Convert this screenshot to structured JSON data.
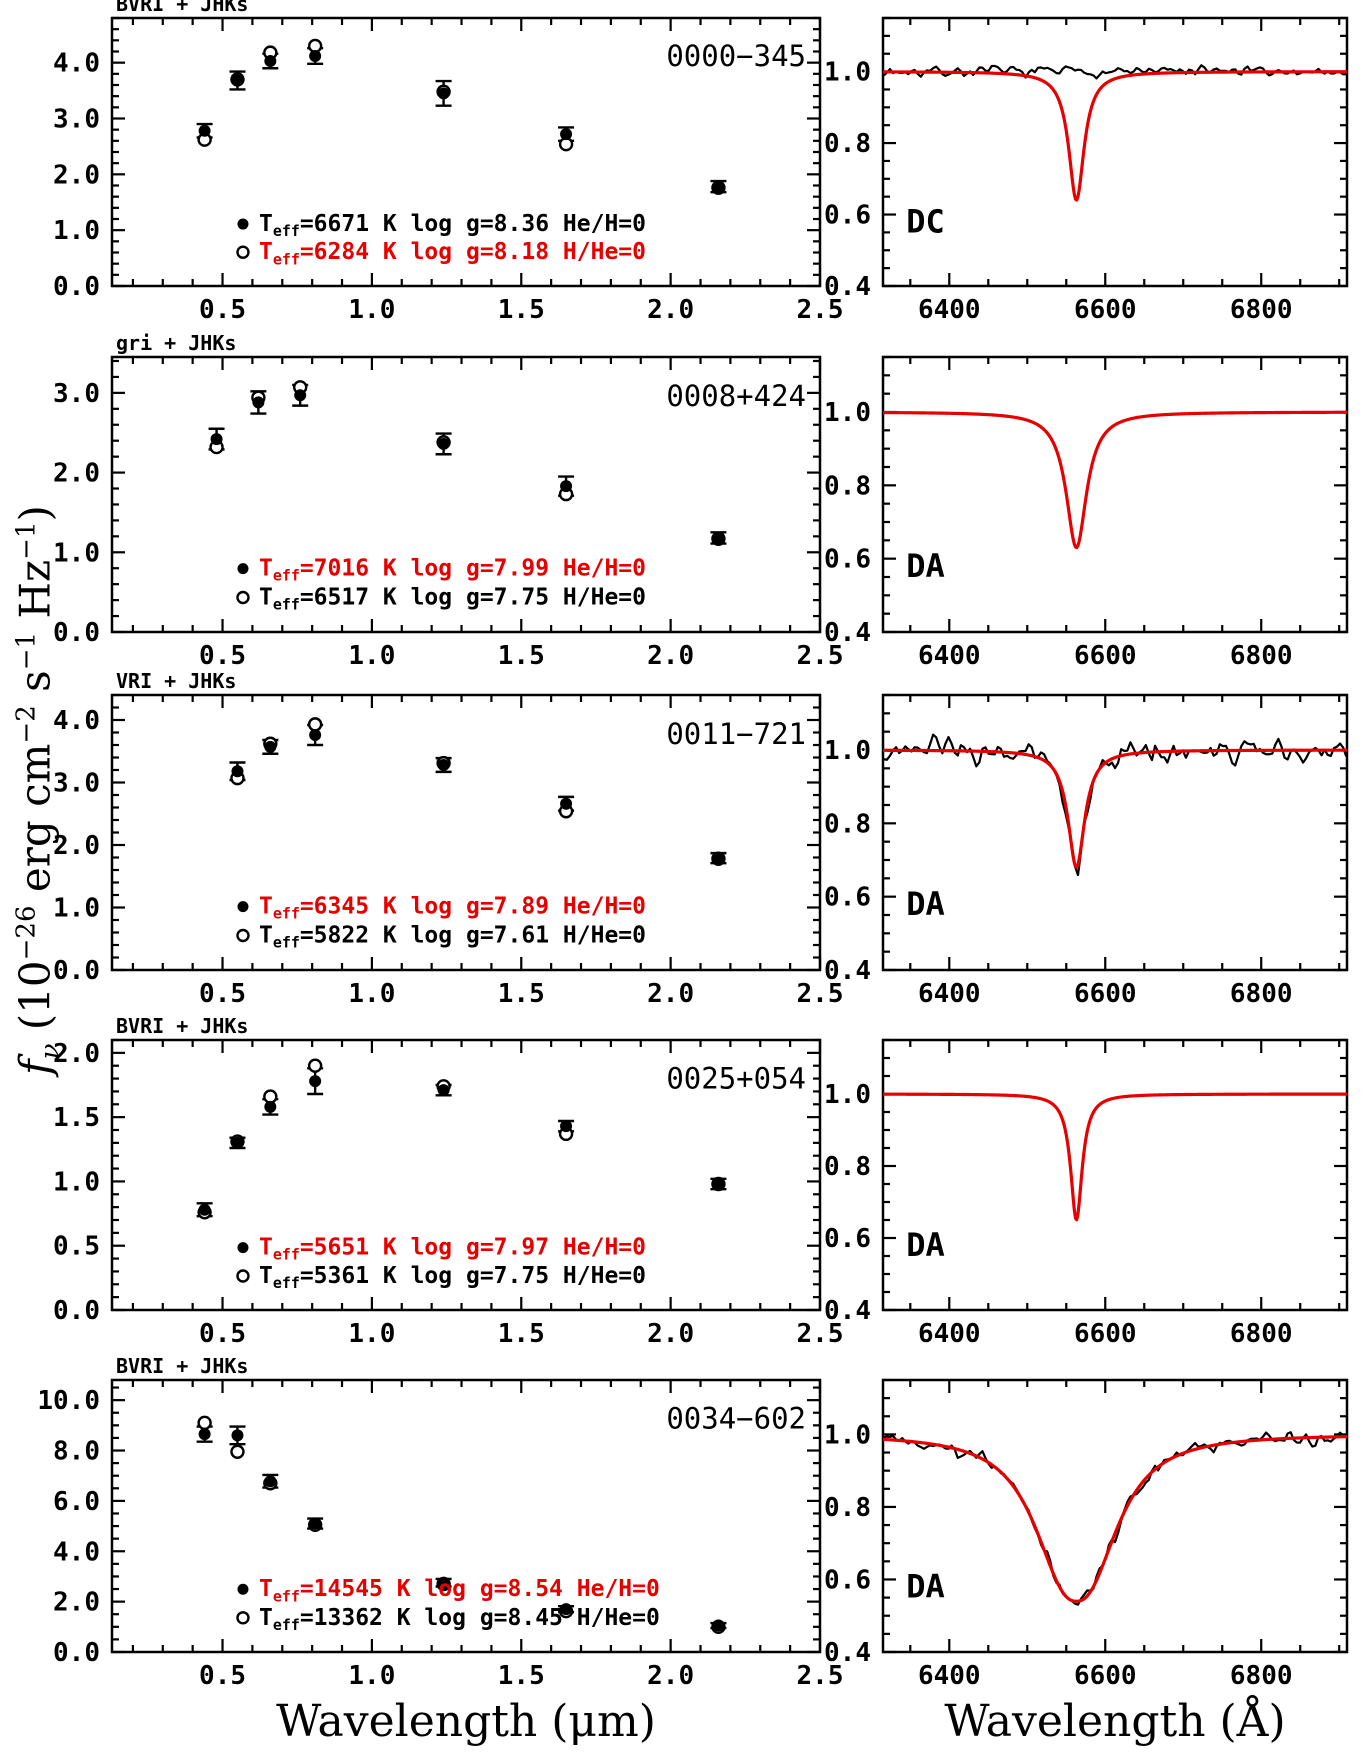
{
  "figure": {
    "background": "#ffffff",
    "red": "#e60000",
    "black": "#000000",
    "xlabel_left": "Wavelength (μm)",
    "xlabel_right": "Wavelength (Å)",
    "ylabel_segments": [
      {
        "t": "f",
        "italic": true
      },
      {
        "t": "ν",
        "sub": true,
        "italic": true
      },
      {
        "t": " (10"
      },
      {
        "t": "−26",
        "sup": true
      },
      {
        "t": " erg cm"
      },
      {
        "t": "−2",
        "sup": true
      },
      {
        "t": " s"
      },
      {
        "t": "−1",
        "sup": true
      },
      {
        "t": " Hz"
      },
      {
        "t": "−1",
        "sup": true
      },
      {
        "t": ")"
      }
    ]
  },
  "chart_data": [
    {
      "sed": {
        "type": "scatter",
        "band_label": "BVRI + JHKs",
        "title": "0000−345",
        "xlim": [
          0.13,
          2.5
        ],
        "ylim": [
          0,
          4.8
        ],
        "xticks": [
          0.5,
          1.0,
          1.5,
          2.0,
          2.5
        ],
        "xtick_labels": [
          "0.5",
          "1.0",
          "1.5",
          "2.0",
          "2.5"
        ],
        "yticks": [
          0,
          1,
          2,
          3,
          4
        ],
        "ytick_labels": [
          "0.0",
          "1.0",
          "2.0",
          "3.0",
          "4.0"
        ],
        "x_minor": 0.1,
        "y_minor": 0.2,
        "filled": {
          "x": [
            0.44,
            0.55,
            0.66,
            0.81,
            1.24,
            1.65,
            2.16
          ],
          "y": [
            2.78,
            3.68,
            4.03,
            4.12,
            3.45,
            2.72,
            1.78
          ],
          "yerr": [
            0.12,
            0.16,
            0.13,
            0.14,
            0.22,
            0.12,
            0.1
          ]
        },
        "open": {
          "x": [
            0.44,
            0.55,
            0.66,
            0.81,
            1.24,
            1.65,
            2.16
          ],
          "y": [
            2.62,
            3.7,
            4.18,
            4.3,
            3.48,
            2.54,
            1.76
          ]
        },
        "legend": [
          {
            "marker": "filled",
            "color": "#000000",
            "segments": [
              {
                "t": "T"
              },
              {
                "t": "eff",
                "sub": true
              },
              {
                "t": "=6671 K  log g=8.36  He/H=0"
              }
            ]
          },
          {
            "marker": "open",
            "color": "#e60000",
            "segments": [
              {
                "t": "T"
              },
              {
                "t": "eff",
                "sub": true
              },
              {
                "t": "=6284 K  log g=8.18  H/He=0"
              }
            ]
          }
        ]
      },
      "spectrum": {
        "type": "line",
        "label": "DC",
        "xlim": [
          6315,
          6910
        ],
        "ylim": [
          0.4,
          1.15
        ],
        "xticks": [
          6400,
          6600,
          6800
        ],
        "xtick_labels": [
          "6400",
          "6600",
          "6800"
        ],
        "yticks": [
          0.4,
          0.6,
          0.8,
          1.0
        ],
        "ytick_labels": [
          "0.4",
          "0.6",
          "0.8",
          "1.0"
        ],
        "x_minor": 50,
        "y_minor": 0.05,
        "model": {
          "center": 6563,
          "depth": 0.36,
          "width": 12,
          "power": 2
        },
        "observed": {
          "mode": "flat",
          "noise": 0.009,
          "seed": 7
        }
      }
    },
    {
      "sed": {
        "type": "scatter",
        "band_label": "gri + JHKs",
        "title": "0008+424",
        "xlim": [
          0.13,
          2.5
        ],
        "ylim": [
          0,
          3.45
        ],
        "xticks": [
          0.5,
          1.0,
          1.5,
          2.0,
          2.5
        ],
        "xtick_labels": [
          "0.5",
          "1.0",
          "1.5",
          "2.0",
          "2.5"
        ],
        "yticks": [
          0,
          1,
          2,
          3
        ],
        "ytick_labels": [
          "0.0",
          "1.0",
          "2.0",
          "3.0"
        ],
        "x_minor": 0.1,
        "y_minor": 0.2,
        "filled": {
          "x": [
            0.48,
            0.62,
            0.76,
            1.24,
            1.65,
            2.16
          ],
          "y": [
            2.42,
            2.88,
            2.97,
            2.36,
            1.83,
            1.18
          ],
          "yerr": [
            0.13,
            0.14,
            0.13,
            0.13,
            0.12,
            0.07
          ]
        },
        "open": {
          "x": [
            0.48,
            0.62,
            0.76,
            1.24,
            1.65,
            2.16
          ],
          "y": [
            2.32,
            2.94,
            3.07,
            2.38,
            1.73,
            1.17
          ]
        },
        "legend": [
          {
            "marker": "filled",
            "color": "#e60000",
            "segments": [
              {
                "t": "T"
              },
              {
                "t": "eff",
                "sub": true
              },
              {
                "t": "=7016 K  log g=7.99  He/H=0"
              }
            ]
          },
          {
            "marker": "open",
            "color": "#000000",
            "segments": [
              {
                "t": "T"
              },
              {
                "t": "eff",
                "sub": true
              },
              {
                "t": "=6517 K  log g=7.75  H/He=0"
              }
            ]
          }
        ]
      },
      "spectrum": {
        "type": "line",
        "label": "DA",
        "xlim": [
          6315,
          6910
        ],
        "ylim": [
          0.4,
          1.15
        ],
        "xticks": [
          6400,
          6600,
          6800
        ],
        "xtick_labels": [
          "6400",
          "6600",
          "6800"
        ],
        "yticks": [
          0.4,
          0.6,
          0.8,
          1.0
        ],
        "ytick_labels": [
          "0.4",
          "0.6",
          "0.8",
          "1.0"
        ],
        "x_minor": 50,
        "y_minor": 0.05,
        "model": {
          "center": 6563,
          "depth": 0.37,
          "width": 16,
          "power": 2
        },
        "observed": null
      }
    },
    {
      "sed": {
        "type": "scatter",
        "band_label": "VRI + JHKs",
        "title": "0011−721",
        "xlim": [
          0.13,
          2.5
        ],
        "ylim": [
          0,
          4.4
        ],
        "xticks": [
          0.5,
          1.0,
          1.5,
          2.0,
          2.5
        ],
        "xtick_labels": [
          "0.5",
          "1.0",
          "1.5",
          "2.0",
          "2.5"
        ],
        "yticks": [
          0,
          1,
          2,
          3,
          4
        ],
        "ytick_labels": [
          "0.0",
          "1.0",
          "2.0",
          "3.0",
          "4.0"
        ],
        "x_minor": 0.1,
        "y_minor": 0.2,
        "filled": {
          "x": [
            0.55,
            0.66,
            0.81,
            1.24,
            1.65,
            2.16
          ],
          "y": [
            3.18,
            3.57,
            3.76,
            3.28,
            2.66,
            1.79
          ],
          "yerr": [
            0.14,
            0.11,
            0.16,
            0.11,
            0.11,
            0.08
          ]
        },
        "open": {
          "x": [
            0.55,
            0.66,
            0.81,
            1.24,
            1.65,
            2.16
          ],
          "y": [
            3.07,
            3.62,
            3.93,
            3.31,
            2.54,
            1.78
          ]
        },
        "legend": [
          {
            "marker": "filled",
            "color": "#e60000",
            "segments": [
              {
                "t": "T"
              },
              {
                "t": "eff",
                "sub": true
              },
              {
                "t": "=6345 K  log g=7.89  He/H=0"
              }
            ]
          },
          {
            "marker": "open",
            "color": "#000000",
            "segments": [
              {
                "t": "T"
              },
              {
                "t": "eff",
                "sub": true
              },
              {
                "t": "=5822 K  log g=7.61  H/He=0"
              }
            ]
          }
        ]
      },
      "spectrum": {
        "type": "line",
        "label": "DA",
        "xlim": [
          6315,
          6910
        ],
        "ylim": [
          0.4,
          1.15
        ],
        "xticks": [
          6400,
          6600,
          6800
        ],
        "xtick_labels": [
          "6400",
          "6600",
          "6800"
        ],
        "yticks": [
          0.4,
          0.6,
          0.8,
          1.0
        ],
        "ytick_labels": [
          "0.4",
          "0.6",
          "0.8",
          "1.0"
        ],
        "x_minor": 50,
        "y_minor": 0.05,
        "model": {
          "center": 6563,
          "depth": 0.32,
          "width": 13,
          "power": 2
        },
        "observed": {
          "mode": "model",
          "noise": 0.022,
          "seed": 23
        }
      }
    },
    {
      "sed": {
        "type": "scatter",
        "band_label": "BVRI + JHKs",
        "title": "0025+054",
        "xlim": [
          0.13,
          2.5
        ],
        "ylim": [
          0,
          2.1
        ],
        "xticks": [
          0.5,
          1.0,
          1.5,
          2.0,
          2.5
        ],
        "xtick_labels": [
          "0.5",
          "1.0",
          "1.5",
          "2.0",
          "2.5"
        ],
        "yticks": [
          0,
          0.5,
          1.0,
          1.5,
          2.0
        ],
        "ytick_labels": [
          "0.0",
          "0.5",
          "1.0",
          "1.5",
          "2.0"
        ],
        "x_minor": 0.1,
        "y_minor": 0.1,
        "filled": {
          "x": [
            0.44,
            0.55,
            0.66,
            0.81,
            1.24,
            1.65,
            2.16
          ],
          "y": [
            0.78,
            1.3,
            1.58,
            1.78,
            1.71,
            1.43,
            0.98
          ],
          "yerr": [
            0.05,
            0.04,
            0.06,
            0.1,
            0.04,
            0.04,
            0.04
          ]
        },
        "open": {
          "x": [
            0.44,
            0.55,
            0.66,
            0.81,
            1.24,
            1.65,
            2.16
          ],
          "y": [
            0.76,
            1.31,
            1.66,
            1.9,
            1.74,
            1.37,
            0.98
          ]
        },
        "legend": [
          {
            "marker": "filled",
            "color": "#e60000",
            "segments": [
              {
                "t": "T"
              },
              {
                "t": "eff",
                "sub": true
              },
              {
                "t": "=5651 K  log g=7.97  He/H=0"
              }
            ]
          },
          {
            "marker": "open",
            "color": "#000000",
            "segments": [
              {
                "t": "T"
              },
              {
                "t": "eff",
                "sub": true
              },
              {
                "t": "=5361 K  log g=7.75  H/He=0"
              }
            ]
          }
        ]
      },
      "spectrum": {
        "type": "line",
        "label": "DA",
        "xlim": [
          6315,
          6910
        ],
        "ylim": [
          0.4,
          1.15
        ],
        "xticks": [
          6400,
          6600,
          6800
        ],
        "xtick_labels": [
          "6400",
          "6600",
          "6800"
        ],
        "yticks": [
          0.4,
          0.6,
          0.8,
          1.0
        ],
        "ytick_labels": [
          "0.4",
          "0.6",
          "0.8",
          "1.0"
        ],
        "x_minor": 50,
        "y_minor": 0.05,
        "model": {
          "center": 6563,
          "depth": 0.35,
          "width": 9,
          "power": 2
        },
        "observed": null
      }
    },
    {
      "sed": {
        "type": "scatter",
        "band_label": "BVRI + JHKs",
        "title": "0034−602",
        "xlim": [
          0.13,
          2.5
        ],
        "ylim": [
          0,
          10.8
        ],
        "xticks": [
          0.5,
          1.0,
          1.5,
          2.0,
          2.5
        ],
        "xtick_labels": [
          "0.5",
          "1.0",
          "1.5",
          "2.0",
          "2.5"
        ],
        "yticks": [
          0,
          2,
          4,
          6,
          8,
          10
        ],
        "ytick_labels": [
          "0.0",
          "2.0",
          "4.0",
          "6.0",
          "8.0",
          "10.0"
        ],
        "x_minor": 0.1,
        "y_minor": 0.5,
        "filled": {
          "x": [
            0.44,
            0.55,
            0.66,
            0.81,
            1.24,
            1.65,
            2.16
          ],
          "y": [
            8.65,
            8.6,
            6.78,
            5.1,
            2.75,
            1.7,
            1.05
          ],
          "yerr": [
            0.3,
            0.35,
            0.25,
            0.2,
            0.15,
            0.12,
            0.1
          ]
        },
        "open": {
          "x": [
            0.44,
            0.55,
            0.66,
            0.81,
            1.24,
            1.65,
            2.16
          ],
          "y": [
            9.1,
            7.95,
            6.7,
            5.05,
            2.7,
            1.62,
            1.0
          ]
        },
        "legend": [
          {
            "marker": "filled",
            "color": "#e60000",
            "segments": [
              {
                "t": "T"
              },
              {
                "t": "eff",
                "sub": true
              },
              {
                "t": "=14545 K  log g=8.54  He/H=0"
              }
            ]
          },
          {
            "marker": "open",
            "color": "#000000",
            "segments": [
              {
                "t": "T"
              },
              {
                "t": "eff",
                "sub": true
              },
              {
                "t": "=13362 K  log g=8.45  H/He=0"
              }
            ]
          }
        ]
      },
      "spectrum": {
        "type": "line",
        "label": "DA",
        "xlim": [
          6315,
          6910
        ],
        "ylim": [
          0.4,
          1.15
        ],
        "xticks": [
          6400,
          6600,
          6800
        ],
        "xtick_labels": [
          "6400",
          "6600",
          "6800"
        ],
        "yticks": [
          0.4,
          0.6,
          0.8,
          1.0
        ],
        "ytick_labels": [
          "0.4",
          "0.6",
          "0.8",
          "1.0"
        ],
        "x_minor": 50,
        "y_minor": 0.05,
        "model": {
          "center": 6563,
          "depth": 0.46,
          "width": 58,
          "power": 2.4
        },
        "observed": {
          "mode": "model",
          "noise": 0.012,
          "seed": 41
        }
      }
    }
  ]
}
